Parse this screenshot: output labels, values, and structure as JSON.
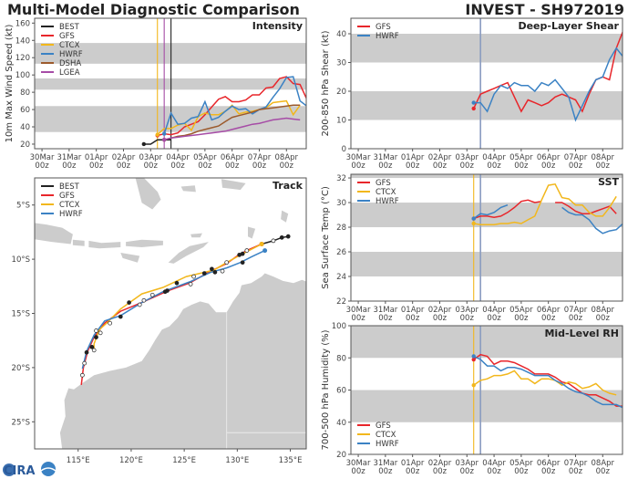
{
  "header": {
    "title": "Multi-Model Diagnostic Comparison",
    "storm": "INVEST - SH972019"
  },
  "logo": {
    "text": "CIRA"
  },
  "colors": {
    "BEST": "#222222",
    "GFS": "#e8262b",
    "CTCX": "#f2b71c",
    "HWRF": "#3b82c4",
    "DSHA": "#9c5a2c",
    "LGEA": "#a64ca6",
    "band": "#cccccc",
    "land": "#cccccc",
    "init_line": "#8a9cc0"
  },
  "x_ticks": [
    {
      "date": "2019-03-30T00:00",
      "label": "30Mar",
      "sub": "00z"
    },
    {
      "date": "2019-03-31T00:00",
      "label": "31Mar",
      "sub": "00z"
    },
    {
      "date": "2019-04-01T00:00",
      "label": "01Apr",
      "sub": "00z"
    },
    {
      "date": "2019-04-02T00:00",
      "label": "02Apr",
      "sub": "00z"
    },
    {
      "date": "2019-04-03T00:00",
      "label": "03Apr",
      "sub": "00z"
    },
    {
      "date": "2019-04-04T00:00",
      "label": "04Apr",
      "sub": "00z"
    },
    {
      "date": "2019-04-05T00:00",
      "label": "05Apr",
      "sub": "00z"
    },
    {
      "date": "2019-04-06T00:00",
      "label": "06Apr",
      "sub": "00z"
    },
    {
      "date": "2019-04-07T00:00",
      "label": "07Apr",
      "sub": "00z"
    },
    {
      "date": "2019-04-08T00:00",
      "label": "08Apr",
      "sub": "00z"
    }
  ],
  "chart_data": [
    {
      "id": "intensity",
      "type": "line",
      "title": "Intensity",
      "ylabel": "10m Max Wind Speed (kt)",
      "xlim": [
        "2019-03-29T17:30",
        "2019-04-08T17:30"
      ],
      "ylim": [
        14.7,
        165.6
      ],
      "yticks": [
        20,
        40,
        60,
        80,
        100,
        120,
        140,
        160
      ],
      "bands": [
        [
          34,
          64
        ],
        [
          83,
          96
        ],
        [
          113,
          137
        ]
      ],
      "legend": "top-left",
      "vlines": [
        {
          "date": "2019-04-03T06:00",
          "color": "CTCX"
        },
        {
          "date": "2019-04-03T12:00",
          "color": "LGEA"
        },
        {
          "date": "2019-04-03T18:00",
          "color": "BEST"
        }
      ],
      "series": [
        {
          "name": "BEST",
          "start": "2019-04-02T18:00",
          "interval_hours": 6,
          "values": [
            20,
            20,
            25,
            25,
            25
          ]
        },
        {
          "name": "GFS",
          "start": "2019-04-03T06:00",
          "interval_hours": 6,
          "values": [
            30,
            32,
            31,
            33,
            40,
            43,
            46,
            54,
            63,
            72,
            75,
            69,
            69,
            71,
            77,
            77,
            85,
            86,
            96,
            98,
            90,
            89,
            72
          ]
        },
        {
          "name": "CTCX",
          "start": "2019-04-03T06:00",
          "interval_hours": 6,
          "values": [
            31,
            38,
            38,
            42,
            44,
            36,
            52,
            56,
            54,
            54,
            58,
            65,
            55,
            57,
            58,
            60,
            62,
            68,
            69,
            70,
            54,
            65
          ]
        },
        {
          "name": "HWRF",
          "start": "2019-04-03T12:00",
          "interval_hours": 6,
          "values": [
            32,
            56,
            43,
            44,
            50,
            52,
            69,
            48,
            51,
            58,
            64,
            60,
            61,
            55,
            60,
            63,
            74,
            84,
            97,
            98,
            70,
            64
          ]
        },
        {
          "name": "DSHA",
          "start": "2019-04-03T12:00",
          "interval_hours": 6,
          "values": [
            25,
            27,
            29,
            30,
            32,
            35,
            37,
            39,
            41,
            46,
            51,
            53,
            55,
            57,
            60,
            61,
            62,
            63,
            64,
            65,
            65
          ]
        },
        {
          "name": "LGEA",
          "start": "2019-04-03T12:00",
          "interval_hours": 6,
          "values": [
            25,
            27,
            28,
            29,
            30,
            31,
            32,
            33,
            34,
            35,
            37,
            39,
            41,
            43,
            44,
            46,
            48,
            49,
            50,
            49,
            48
          ]
        }
      ]
    },
    {
      "id": "shear",
      "type": "line",
      "title": "Deep-Layer Shear",
      "ylabel": "200-850 hPa Shear (kt)",
      "xlim": [
        "2019-03-29T17:30",
        "2019-04-08T17:30"
      ],
      "ylim": [
        0,
        45.4
      ],
      "yticks": [
        0,
        10,
        20,
        30,
        40
      ],
      "bands": [
        [
          10,
          20
        ],
        [
          30,
          40
        ]
      ],
      "legend": "top-left",
      "vlines": [
        {
          "date": "2019-04-03T12:00",
          "color": "init_line"
        }
      ],
      "series": [
        {
          "name": "GFS",
          "start": "2019-04-03T06:00",
          "interval_hours": 6,
          "values": [
            14,
            19,
            20,
            21,
            22,
            23,
            18,
            13,
            17,
            16,
            15,
            16,
            18,
            19,
            18,
            17,
            13,
            19,
            24,
            25,
            24,
            35,
            41
          ]
        },
        {
          "name": "HWRF",
          "start": "2019-04-03T06:00",
          "interval_hours": 6,
          "values": [
            16,
            16,
            13,
            19,
            22,
            21,
            23,
            22,
            22,
            20,
            23,
            22,
            24,
            21,
            18,
            10,
            15,
            20,
            24,
            25,
            31,
            35,
            32
          ]
        }
      ]
    },
    {
      "id": "sst",
      "type": "line",
      "title": "SST",
      "ylabel": "Sea Surface Temp (°C)",
      "xlim": [
        "2019-03-29T17:30",
        "2019-04-08T17:30"
      ],
      "ylim": [
        22,
        32.3
      ],
      "yticks": [
        22,
        24,
        26,
        28,
        30,
        32
      ],
      "bands": [
        [
          24,
          26
        ],
        [
          28,
          30
        ],
        [
          32,
          34
        ]
      ],
      "legend": "top-left",
      "vlines": [
        {
          "date": "2019-04-03T06:00",
          "color": "CTCX"
        },
        {
          "date": "2019-04-03T12:00",
          "color": "init_line"
        }
      ],
      "series": [
        {
          "name": "GFS",
          "start": "2019-04-03T06:00",
          "interval_hours": 6,
          "values": [
            28.7,
            28.9,
            28.9,
            28.8,
            28.9,
            29.2,
            29.6,
            30.1,
            30.2,
            30.0,
            30.1,
            null,
            30.0,
            30.0,
            29.7,
            29.3,
            29.1,
            29.1,
            29.3,
            29.5,
            29.7,
            29.1
          ]
        },
        {
          "name": "CTCX",
          "start": "2019-04-03T06:00",
          "interval_hours": 6,
          "values": [
            28.3,
            28.2,
            28.2,
            28.2,
            28.3,
            28.3,
            28.4,
            28.3,
            28.6,
            28.9,
            30.2,
            31.4,
            31.5,
            30.4,
            30.3,
            29.8,
            29.8,
            29.2,
            28.9,
            28.9,
            29.6,
            30.5
          ]
        },
        {
          "name": "HWRF",
          "start": "2019-04-03T06:00",
          "interval_hours": 6,
          "values": [
            28.7,
            29.1,
            29.0,
            29.2,
            29.6,
            29.8,
            null,
            null,
            null,
            null,
            null,
            null,
            null,
            29.6,
            29.2,
            29.0,
            29.0,
            28.6,
            27.9,
            27.5,
            27.7,
            27.8,
            28.3
          ]
        }
      ]
    },
    {
      "id": "rh",
      "type": "line",
      "title": "Mid-Level RH",
      "ylabel": "700-500 hPa Humidity (%)",
      "xlim": [
        "2019-03-29T17:30",
        "2019-04-08T17:30"
      ],
      "ylim": [
        20,
        100
      ],
      "yticks": [
        20,
        40,
        60,
        80,
        100
      ],
      "bands": [
        [
          40,
          60
        ],
        [
          80,
          100
        ]
      ],
      "legend": "bottom-left",
      "vlines": [
        {
          "date": "2019-04-03T06:00",
          "color": "CTCX"
        },
        {
          "date": "2019-04-03T12:00",
          "color": "init_line"
        }
      ],
      "series": [
        {
          "name": "GFS",
          "start": "2019-04-03T06:00",
          "interval_hours": 6,
          "values": [
            79,
            82,
            81,
            76,
            78,
            78,
            77,
            75,
            73,
            70,
            70,
            70,
            68,
            65,
            64,
            61,
            58,
            57,
            57,
            55,
            53,
            50,
            50
          ]
        },
        {
          "name": "CTCX",
          "start": "2019-04-03T06:00",
          "interval_hours": 6,
          "values": [
            63,
            66,
            67,
            69,
            69,
            70,
            72,
            67,
            67,
            64,
            67,
            67,
            66,
            63,
            65,
            64,
            61,
            62,
            64,
            60,
            58,
            57
          ]
        },
        {
          "name": "HWRF",
          "start": "2019-04-03T06:00",
          "interval_hours": 6,
          "values": [
            81,
            79,
            75,
            75,
            72,
            74,
            74,
            73,
            71,
            69,
            69,
            69,
            66,
            64,
            61,
            59,
            58,
            56,
            53,
            51,
            51,
            51,
            49
          ]
        }
      ]
    },
    {
      "id": "track",
      "type": "line",
      "title": "Track",
      "xlim": [
        110.9,
        136.5
      ],
      "ylim": [
        -27.5,
        -2.5
      ],
      "xticks": [
        {
          "value": 115,
          "label": "115°E"
        },
        {
          "value": 120,
          "label": "120°E"
        },
        {
          "value": 125,
          "label": "125°E"
        },
        {
          "value": 130,
          "label": "130°E"
        },
        {
          "value": 135,
          "label": "135°E"
        }
      ],
      "yticks": [
        {
          "value": -5,
          "label": "5°S"
        },
        {
          "value": -10,
          "label": "10°S"
        },
        {
          "value": -15,
          "label": "15°S"
        },
        {
          "value": -20,
          "label": "20°S"
        },
        {
          "value": -25,
          "label": "25°S"
        }
      ],
      "legend": "top-left",
      "series": [
        {
          "name": "BEST",
          "points": [
            [
              134.8,
              -7.9
            ],
            [
              134.2,
              -8.0
            ],
            [
              133.4,
              -8.3
            ],
            [
              132.3,
              -8.6
            ]
          ]
        },
        {
          "name": "GFS",
          "points": [
            [
              132.3,
              -8.6
            ],
            [
              130.9,
              -9.2
            ],
            [
              130.0,
              -9.7
            ],
            [
              129.0,
              -10.4
            ],
            [
              127.5,
              -11.1
            ],
            [
              125.5,
              -12.2
            ],
            [
              123.5,
              -12.9
            ],
            [
              121.0,
              -14.0
            ],
            [
              119.0,
              -14.8
            ],
            [
              117.5,
              -15.9
            ],
            [
              116.5,
              -17.2
            ],
            [
              115.9,
              -18.5
            ],
            [
              115.5,
              -20.0
            ],
            [
              115.3,
              -21.6
            ]
          ]
        },
        {
          "name": "CTCX",
          "points": [
            [
              132.3,
              -8.6
            ],
            [
              130.5,
              -9.5
            ],
            [
              129.0,
              -10.3
            ],
            [
              127.8,
              -11.0
            ],
            [
              125.2,
              -11.6
            ],
            [
              123.0,
              -12.6
            ],
            [
              121.0,
              -13.2
            ],
            [
              119.0,
              -14.6
            ],
            [
              117.8,
              -15.8
            ],
            [
              117.0,
              -16.5
            ],
            [
              116.5,
              -17.8
            ],
            [
              116.5,
              -18.3
            ]
          ]
        },
        {
          "name": "HWRF",
          "points": [
            [
              132.6,
              -9.2
            ],
            [
              131.3,
              -9.8
            ],
            [
              130.3,
              -10.3
            ],
            [
              129.0,
              -10.8
            ],
            [
              127.5,
              -11.2
            ],
            [
              125.5,
              -12.1
            ],
            [
              123.0,
              -13.0
            ],
            [
              121.0,
              -14.0
            ],
            [
              119.0,
              -15.2
            ],
            [
              117.5,
              -15.7
            ],
            [
              116.5,
              -17.0
            ],
            [
              115.8,
              -18.5
            ],
            [
              115.4,
              -20.1
            ]
          ]
        }
      ],
      "markers": [
        {
          "lon": 134.8,
          "lat": -7.9,
          "filled": true
        },
        {
          "lon": 134.2,
          "lat": -8.0,
          "filled": true
        },
        {
          "lon": 133.4,
          "lat": -8.3,
          "filled": false
        },
        {
          "lon": 130.9,
          "lat": -9.2,
          "filled": false
        },
        {
          "lon": 130.2,
          "lat": -9.6,
          "filled": true
        },
        {
          "lon": 130.5,
          "lat": -9.5,
          "filled": true
        },
        {
          "lon": 129.0,
          "lat": -10.3,
          "filled": false
        },
        {
          "lon": 130.5,
          "lat": -10.3,
          "filled": true
        },
        {
          "lon": 128.6,
          "lat": -11.1,
          "filled": false
        },
        {
          "lon": 127.6,
          "lat": -10.9,
          "filled": true
        },
        {
          "lon": 127.9,
          "lat": -11.2,
          "filled": true
        },
        {
          "lon": 126.9,
          "lat": -11.3,
          "filled": true
        },
        {
          "lon": 125.9,
          "lat": -11.6,
          "filled": false
        },
        {
          "lon": 125.6,
          "lat": -12.3,
          "filled": false
        },
        {
          "lon": 124.3,
          "lat": -12.2,
          "filled": true
        },
        {
          "lon": 123.4,
          "lat": -12.9,
          "filled": true
        },
        {
          "lon": 123.2,
          "lat": -13.0,
          "filled": true
        },
        {
          "lon": 122.0,
          "lat": -13.3,
          "filled": false
        },
        {
          "lon": 121.2,
          "lat": -13.8,
          "filled": false
        },
        {
          "lon": 120.8,
          "lat": -14.2,
          "filled": false
        },
        {
          "lon": 119.8,
          "lat": -14.0,
          "filled": true
        },
        {
          "lon": 119.0,
          "lat": -15.3,
          "filled": true
        },
        {
          "lon": 118.0,
          "lat": -15.9,
          "filled": false
        },
        {
          "lon": 117.1,
          "lat": -16.8,
          "filled": false
        },
        {
          "lon": 116.7,
          "lat": -16.6,
          "filled": false
        },
        {
          "lon": 116.7,
          "lat": -17.2,
          "filled": true
        },
        {
          "lon": 116.3,
          "lat": -18.1,
          "filled": true
        },
        {
          "lon": 116.5,
          "lat": -18.4,
          "filled": false
        },
        {
          "lon": 115.8,
          "lat": -18.6,
          "filled": true
        },
        {
          "lon": 115.6,
          "lat": -19.6,
          "filled": false
        },
        {
          "lon": 115.4,
          "lat": -20.7,
          "filled": false
        }
      ]
    }
  ]
}
